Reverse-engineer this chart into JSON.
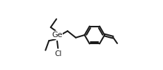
{
  "bg_color": "#ffffff",
  "line_color": "#1a1a1a",
  "line_width": 1.5,
  "font_size_label": 7.5,
  "ge_label": "Ge",
  "cl_label": "Cl",
  "figsize": [
    2.34,
    1.0
  ],
  "dpi": 100
}
